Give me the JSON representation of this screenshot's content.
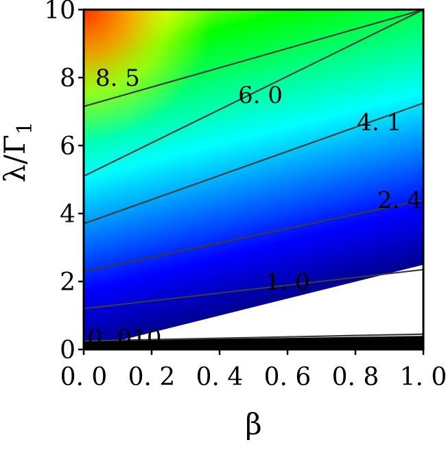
{
  "chart_data": {
    "type": "heatmap",
    "title": "",
    "xlabel": "β",
    "ylabel": "λ/Γ",
    "ylabel_subscript": "1",
    "xlim": [
      0.0,
      1.0
    ],
    "ylim": [
      0,
      10
    ],
    "x_ticks": [
      0.0,
      0.2,
      0.4,
      0.6,
      0.8,
      1.0
    ],
    "x_tick_labels": [
      "0. 0",
      "0. 2",
      "0. 4",
      "0. 6",
      "0. 8",
      "1. 0"
    ],
    "y_ticks": [
      0,
      2,
      4,
      6,
      8,
      10
    ],
    "y_tick_labels": [
      "0",
      "2",
      "4",
      "6",
      "8",
      "10"
    ],
    "colormap": "jet",
    "colormap_stops": [
      "#000090",
      "#0000ff",
      "#0080ff",
      "#00ffff",
      "#00ff80",
      "#00ff00",
      "#ffff00",
      "#ff8000",
      "#ff0000"
    ],
    "grid": false,
    "contours": [
      {
        "level_label": "0. 010",
        "y_at_x0": 0.25,
        "y_at_x1": 0.45,
        "label_x": 0.12,
        "label_y": 0.35
      },
      {
        "level_label": "1. 0",
        "y_at_x0": 1.2,
        "y_at_x1": 2.35,
        "label_x": 0.6,
        "label_y": 2.0
      },
      {
        "level_label": "2. 4",
        "y_at_x0": 2.3,
        "y_at_x1": 4.4,
        "label_x": 0.93,
        "label_y": 4.4
      },
      {
        "level_label": "4. 1",
        "y_at_x0": 3.7,
        "y_at_x1": 7.25,
        "label_x": 0.87,
        "label_y": 6.7
      },
      {
        "level_label": "6. 0",
        "y_at_x0": 5.1,
        "y_at_x1": 10.0,
        "label_x": 0.52,
        "label_y": 7.5
      },
      {
        "level_label": "8. 5",
        "y_at_x0": 7.15,
        "y_at_x1": 10.0,
        "label_x": 0.1,
        "label_y": 8.0
      }
    ],
    "contour_color": "#3a3a3a",
    "black_region": {
      "y_top_at_x0": 0.25,
      "y_top_at_x1": 0.4
    }
  }
}
